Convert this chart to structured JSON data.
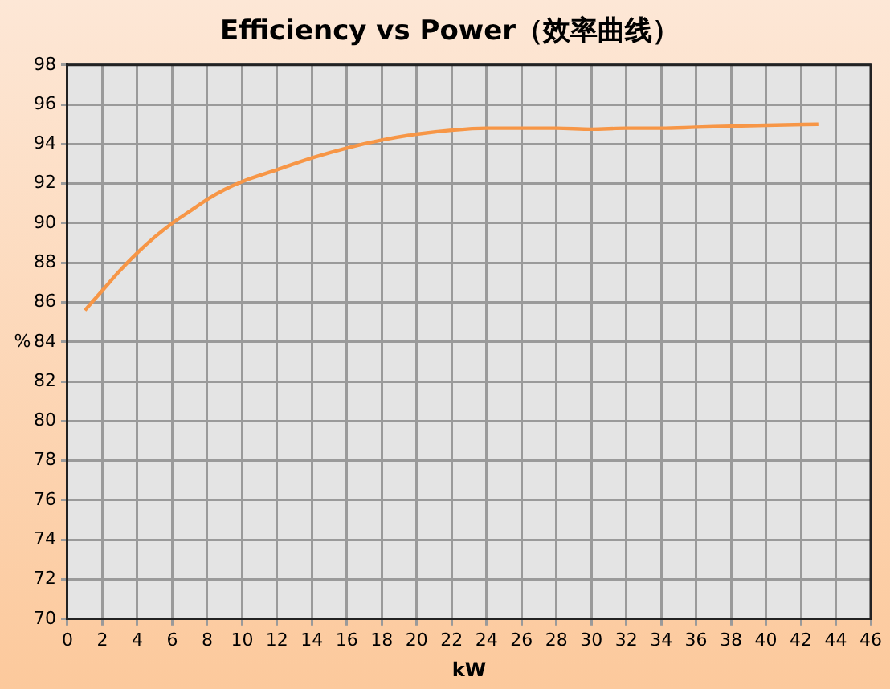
{
  "chart_data": {
    "type": "line",
    "title": "Efficiency vs Power（效率曲线）",
    "xlabel": "kW",
    "ylabel": "%",
    "x": [
      1,
      2,
      3,
      4,
      5,
      6,
      7,
      8,
      9,
      10,
      12,
      14,
      16,
      18,
      20,
      22,
      24,
      26,
      28,
      30,
      32,
      34,
      36,
      38,
      40,
      43
    ],
    "series": [
      {
        "color": "#f79646",
        "values": [
          85.6,
          86.6,
          87.6,
          88.5,
          89.3,
          90.0,
          90.6,
          91.2,
          91.7,
          92.1,
          92.7,
          93.3,
          93.8,
          94.2,
          94.5,
          94.7,
          94.8,
          94.8,
          94.8,
          94.75,
          94.8,
          94.8,
          94.85,
          94.9,
          94.95,
          95.0
        ]
      }
    ],
    "xlim": [
      0,
      46
    ],
    "xticks": [
      0,
      2,
      4,
      6,
      8,
      10,
      12,
      14,
      16,
      18,
      20,
      22,
      24,
      26,
      28,
      30,
      32,
      34,
      36,
      38,
      40,
      42,
      44,
      46
    ],
    "ylim": [
      70,
      98
    ],
    "yticks": [
      70,
      72,
      74,
      76,
      78,
      80,
      82,
      84,
      86,
      88,
      90,
      92,
      94,
      96,
      98
    ],
    "grid": true,
    "legend": false,
    "marker": "none",
    "line_style": "solid"
  }
}
